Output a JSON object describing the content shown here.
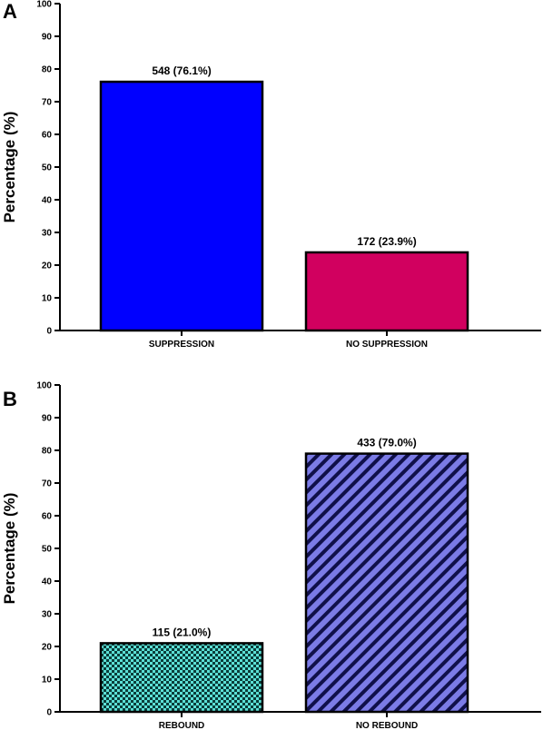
{
  "chart_data": [
    {
      "panel": "A",
      "type": "bar",
      "ylabel": "Percentage (%)",
      "xlabel": "",
      "ylim": [
        0,
        100
      ],
      "yticks": [
        0,
        10,
        20,
        30,
        40,
        50,
        60,
        70,
        80,
        90,
        100
      ],
      "categories": [
        "SUPPRESSION",
        "NO SUPPRESSION"
      ],
      "values": [
        76.1,
        23.9
      ],
      "data_labels": [
        "548 (76.1%)",
        "172 (23.9%)"
      ],
      "colors": [
        "#0000ff",
        "#d1005f"
      ],
      "fills": [
        "solid",
        "solid"
      ],
      "grid": false,
      "legend": "none"
    },
    {
      "panel": "B",
      "type": "bar",
      "ylabel": "Percentage (%)",
      "xlabel": "",
      "ylim": [
        0,
        100
      ],
      "yticks": [
        0,
        10,
        20,
        30,
        40,
        50,
        60,
        70,
        80,
        90,
        100
      ],
      "categories": [
        "REBOUND",
        "NO REBOUND"
      ],
      "values": [
        21.0,
        79.0
      ],
      "data_labels": [
        "115 (21.0%)",
        "433 (79.0%)"
      ],
      "colors": [
        "#5ce0d6",
        "#7b7be6"
      ],
      "fills": [
        "checkerboard",
        "diagonal-stripes"
      ],
      "grid": false,
      "legend": "none"
    }
  ]
}
